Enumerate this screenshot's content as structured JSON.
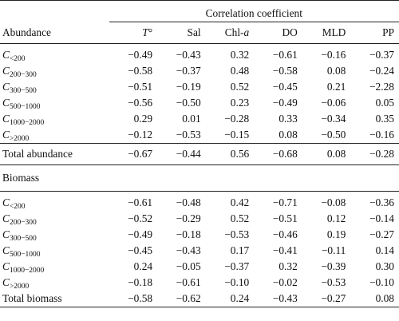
{
  "header": {
    "group_label": "Correlation coefficient",
    "row_label": "Abundance",
    "columns": [
      {
        "main": "T",
        "suffix": "°",
        "italic": true
      },
      {
        "main": "Sal",
        "suffix": "",
        "italic": false
      },
      {
        "main": "Chl-",
        "suffix": "a",
        "italic": false
      },
      {
        "main": "DO",
        "suffix": "",
        "italic": false
      },
      {
        "main": "MLD",
        "suffix": "",
        "italic": false
      },
      {
        "main": "PP",
        "suffix": "",
        "italic": false
      }
    ]
  },
  "abundance_rows": [
    {
      "base": "C",
      "sub": "<200",
      "values": [
        "−0.49",
        "−0.43",
        "0.32",
        "−0.61",
        "−0.16",
        "−0.37"
      ],
      "bold": [
        false,
        false,
        false,
        true,
        false,
        false
      ]
    },
    {
      "base": "C",
      "sub": "200−300",
      "values": [
        "−0.58",
        "−0.37",
        "0.48",
        "−0.58",
        "0.08",
        "−0.24"
      ],
      "bold": [
        true,
        false,
        false,
        true,
        false,
        false
      ]
    },
    {
      "base": "C",
      "sub": "300−500",
      "values": [
        "−0.51",
        "−0.19",
        "0.52",
        "−0.45",
        "0.21",
        "−2.28"
      ],
      "bold": [
        false,
        false,
        true,
        false,
        false,
        false
      ]
    },
    {
      "base": "C",
      "sub": "500−1000",
      "values": [
        "−0.56",
        "−0.50",
        "0.23",
        "−0.49",
        "−0.06",
        "0.05"
      ],
      "bold": [
        true,
        false,
        false,
        false,
        false,
        false
      ]
    },
    {
      "base": "C",
      "sub": "1000−2000",
      "values": [
        "0.29",
        "0.01",
        "−0.28",
        "0.33",
        "−0.34",
        "0.35"
      ],
      "bold": [
        false,
        false,
        false,
        false,
        false,
        false
      ]
    },
    {
      "base": "C",
      "sub": ">2000",
      "values": [
        "−0.12",
        "−0.53",
        "−0.15",
        "0.08",
        "−0.50",
        "−0.16"
      ],
      "bold": [
        true,
        true,
        false,
        false,
        false,
        false
      ]
    }
  ],
  "total_abundance": {
    "label": "Total abundance",
    "values": [
      "−0.67",
      "−0.44",
      "0.56",
      "−0.68",
      "0.08",
      "−0.28"
    ],
    "bold": [
      true,
      false,
      true,
      true,
      false,
      false
    ]
  },
  "biomass_label": "Biomass",
  "biomass_rows": [
    {
      "base": "C",
      "sub": "<200",
      "values": [
        "−0.61",
        "−0.48",
        "0.42",
        "−0.71",
        "−0.08",
        "−0.36"
      ],
      "bold": [
        true,
        false,
        false,
        true,
        false,
        false
      ]
    },
    {
      "base": "C",
      "sub": "200−300",
      "values": [
        "−0.52",
        "−0.29",
        "0.52",
        "−0.51",
        "0.12",
        "−0.14"
      ],
      "bold": [
        true,
        false,
        false,
        false,
        false,
        false
      ]
    },
    {
      "base": "C",
      "sub": "300−500",
      "values": [
        "−0.49",
        "−0.18",
        "−0.53",
        "−0.46",
        "0.19",
        "−0.27"
      ],
      "bold": [
        false,
        false,
        true,
        false,
        false,
        false
      ]
    },
    {
      "base": "C",
      "sub": "500−1000",
      "values": [
        "−0.45",
        "−0.43",
        "0.17",
        "−0.41",
        "−0.11",
        "0.14"
      ],
      "bold": [
        false,
        false,
        false,
        false,
        false,
        false
      ]
    },
    {
      "base": "C",
      "sub": "1000−2000",
      "values": [
        "0.24",
        "−0.05",
        "−0.37",
        "0.32",
        "−0.39",
        "0.30"
      ],
      "bold": [
        false,
        false,
        false,
        false,
        false,
        false
      ]
    },
    {
      "base": "C",
      "sub": ">2000",
      "values": [
        "−0.18",
        "−0.61",
        "−0.10",
        "−0.02",
        "−0.53",
        "−0.10"
      ],
      "bold": [
        false,
        true,
        false,
        false,
        true,
        false
      ]
    }
  ],
  "total_biomass": {
    "label": "Total biomass",
    "values": [
      "−0.58",
      "−0.62",
      "0.24",
      "−0.43",
      "−0.27",
      "0.08"
    ],
    "bold": [
      true,
      true,
      false,
      false,
      false,
      false
    ]
  }
}
